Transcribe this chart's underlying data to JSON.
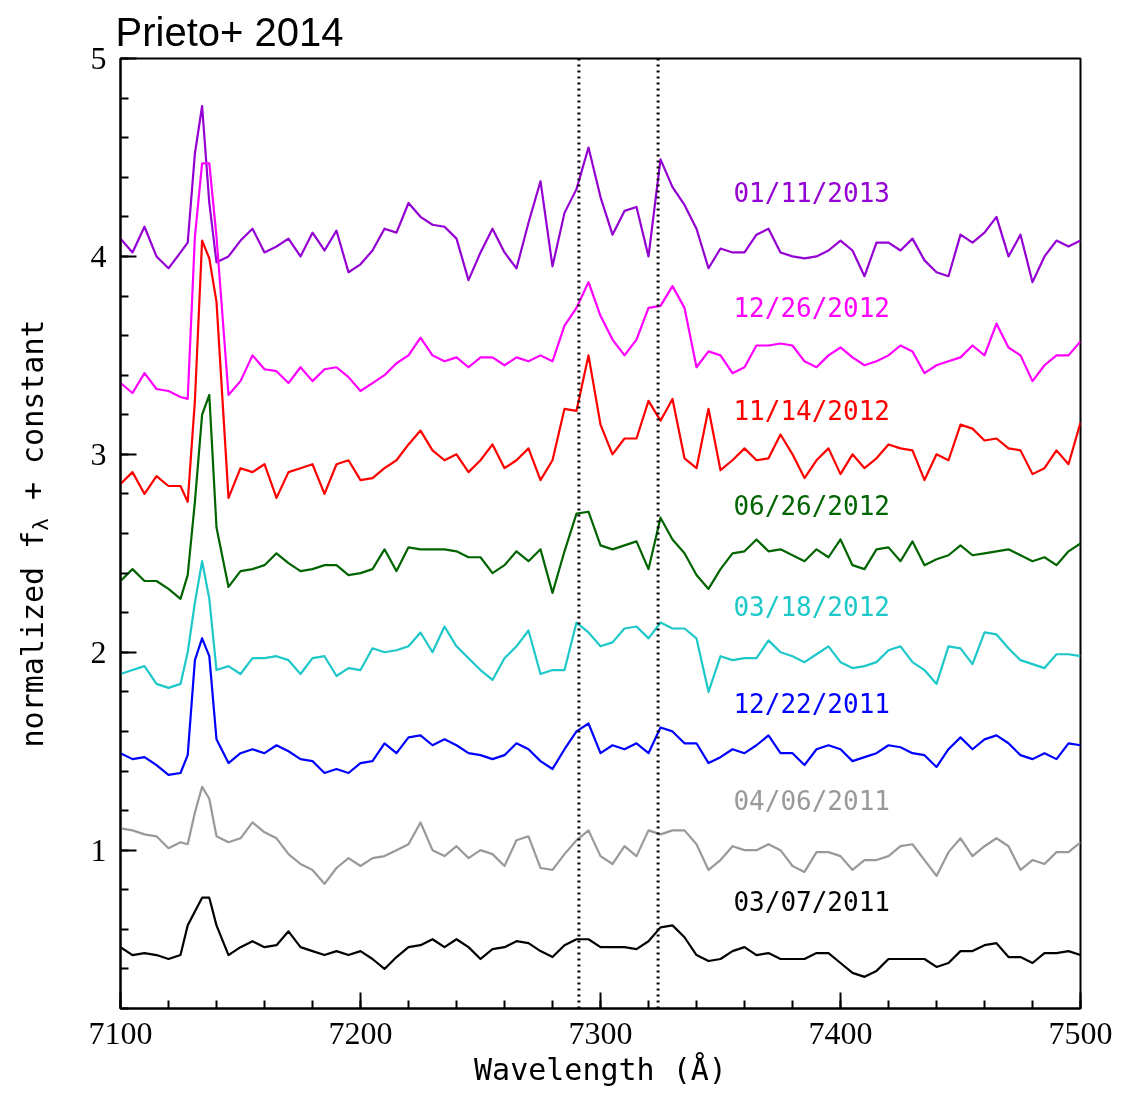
{
  "chart_data": {
    "type": "line",
    "title": "Prieto+ 2014",
    "xlabel": "Wavelength (Å)",
    "ylabel": "normalized f$_{λ}$ + constant",
    "x": [
      7100,
      7105,
      7110,
      7115,
      7120,
      7125,
      7128,
      7131,
      7134,
      7137,
      7140,
      7145,
      7150,
      7155,
      7160,
      7165,
      7170,
      7175,
      7180,
      7185,
      7190,
      7195,
      7200,
      7205,
      7210,
      7215,
      7220,
      7225,
      7230,
      7235,
      7240,
      7245,
      7250,
      7255,
      7260,
      7265,
      7270,
      7275,
      7280,
      7285,
      7290,
      7295,
      7300,
      7305,
      7310,
      7315,
      7320,
      7325,
      7330,
      7335,
      7340,
      7345,
      7350,
      7355,
      7360,
      7365,
      7370,
      7375,
      7380,
      7385,
      7390,
      7395,
      7400,
      7405,
      7410,
      7415,
      7420,
      7425,
      7430,
      7435,
      7440,
      7445,
      7450,
      7455,
      7460,
      7465,
      7470,
      7475,
      7480,
      7485,
      7490,
      7495,
      7500
    ],
    "xlim": [
      7100,
      7500
    ],
    "ylim": [
      0.2,
      5
    ],
    "xticks": [
      7100,
      7200,
      7300,
      7400,
      7500
    ],
    "yticks": [
      1,
      2,
      3,
      4,
      5
    ],
    "grid": false,
    "ref_lines": [
      {
        "axis": "x",
        "value": 7291,
        "color": "#000000",
        "line_style": "dotted"
      },
      {
        "axis": "x",
        "value": 7324,
        "color": "#000000",
        "line_style": "dotted"
      }
    ],
    "series": [
      {
        "name": "01/11/2013",
        "color": "#9400d3",
        "values": [
          4.09,
          4.02,
          4.15,
          4.0,
          3.94,
          4.02,
          4.07,
          4.52,
          4.76,
          4.27,
          3.97,
          4.0,
          4.08,
          4.14,
          4.02,
          4.05,
          4.09,
          4.0,
          4.12,
          4.03,
          4.13,
          3.92,
          3.96,
          4.03,
          4.14,
          4.12,
          4.27,
          4.2,
          4.16,
          4.15,
          4.09,
          3.88,
          4.02,
          4.14,
          4.02,
          3.94,
          4.17,
          4.38,
          3.95,
          4.22,
          4.34,
          4.55,
          4.3,
          4.11,
          4.23,
          4.25,
          4.0,
          4.49,
          4.35,
          4.26,
          4.14,
          3.94,
          4.04,
          4.02,
          4.02,
          4.11,
          4.14,
          4.02,
          4.0,
          3.99,
          4.0,
          4.03,
          4.08,
          4.03,
          3.9,
          4.07,
          4.07,
          4.03,
          4.09,
          3.98,
          3.92,
          3.9,
          4.11,
          4.07,
          4.12,
          4.2,
          4.0,
          4.11,
          3.87,
          4.0,
          4.08,
          4.05,
          4.08
        ]
      },
      {
        "name": "12/26/2012",
        "color": "#ff00ff",
        "values": [
          3.36,
          3.31,
          3.41,
          3.33,
          3.32,
          3.29,
          3.28,
          4.1,
          4.47,
          4.47,
          4.1,
          3.3,
          3.37,
          3.5,
          3.43,
          3.42,
          3.36,
          3.44,
          3.37,
          3.43,
          3.44,
          3.39,
          3.32,
          3.36,
          3.4,
          3.46,
          3.5,
          3.59,
          3.5,
          3.47,
          3.49,
          3.44,
          3.49,
          3.49,
          3.45,
          3.49,
          3.47,
          3.5,
          3.47,
          3.65,
          3.74,
          3.87,
          3.7,
          3.58,
          3.5,
          3.58,
          3.74,
          3.75,
          3.85,
          3.74,
          3.44,
          3.52,
          3.5,
          3.41,
          3.44,
          3.55,
          3.55,
          3.56,
          3.55,
          3.47,
          3.44,
          3.5,
          3.54,
          3.49,
          3.45,
          3.47,
          3.5,
          3.55,
          3.52,
          3.41,
          3.45,
          3.47,
          3.49,
          3.55,
          3.5,
          3.66,
          3.54,
          3.5,
          3.37,
          3.45,
          3.5,
          3.5,
          3.57
        ]
      },
      {
        "name": "11/14/2012",
        "color": "#ff0000",
        "values": [
          2.85,
          2.91,
          2.8,
          2.89,
          2.84,
          2.84,
          2.76,
          3.27,
          4.08,
          3.99,
          3.77,
          2.78,
          2.93,
          2.91,
          2.95,
          2.78,
          2.91,
          2.93,
          2.95,
          2.8,
          2.95,
          2.97,
          2.87,
          2.88,
          2.93,
          2.97,
          3.05,
          3.12,
          3.02,
          2.97,
          3.0,
          2.91,
          2.97,
          3.05,
          2.93,
          2.97,
          3.03,
          2.87,
          2.97,
          3.23,
          3.22,
          3.5,
          3.15,
          3.0,
          3.08,
          3.08,
          3.27,
          3.17,
          3.28,
          2.98,
          2.93,
          3.23,
          2.92,
          2.97,
          3.03,
          2.97,
          2.98,
          3.1,
          3.0,
          2.88,
          2.97,
          3.03,
          2.9,
          3.0,
          2.93,
          2.98,
          3.05,
          3.03,
          3.02,
          2.87,
          3.0,
          2.97,
          3.15,
          3.13,
          3.07,
          3.08,
          3.03,
          3.02,
          2.9,
          2.93,
          3.02,
          2.95,
          3.16
        ]
      },
      {
        "name": "06/26/2012",
        "color": "#006400",
        "values": [
          2.36,
          2.42,
          2.36,
          2.36,
          2.32,
          2.27,
          2.39,
          2.76,
          3.2,
          3.3,
          2.63,
          2.33,
          2.41,
          2.42,
          2.44,
          2.5,
          2.45,
          2.41,
          2.42,
          2.44,
          2.44,
          2.39,
          2.4,
          2.42,
          2.52,
          2.41,
          2.53,
          2.52,
          2.52,
          2.52,
          2.51,
          2.48,
          2.48,
          2.4,
          2.44,
          2.51,
          2.46,
          2.52,
          2.3,
          2.51,
          2.7,
          2.71,
          2.54,
          2.52,
          2.54,
          2.56,
          2.42,
          2.68,
          2.57,
          2.5,
          2.39,
          2.32,
          2.42,
          2.5,
          2.51,
          2.57,
          2.51,
          2.52,
          2.49,
          2.46,
          2.52,
          2.48,
          2.57,
          2.44,
          2.42,
          2.52,
          2.53,
          2.46,
          2.56,
          2.44,
          2.47,
          2.49,
          2.54,
          2.49,
          2.5,
          2.51,
          2.52,
          2.49,
          2.46,
          2.48,
          2.44,
          2.51,
          2.55
        ]
      },
      {
        "name": "03/18/2012",
        "color": "#1ec8c8",
        "values": [
          1.89,
          1.91,
          1.93,
          1.84,
          1.82,
          1.84,
          2.0,
          2.25,
          2.46,
          2.27,
          1.91,
          1.93,
          1.89,
          1.97,
          1.97,
          1.98,
          1.96,
          1.89,
          1.97,
          1.98,
          1.88,
          1.92,
          1.91,
          2.02,
          2.0,
          2.01,
          2.03,
          2.1,
          2.0,
          2.13,
          2.03,
          1.97,
          1.91,
          1.86,
          1.97,
          2.03,
          2.11,
          1.89,
          1.91,
          1.91,
          2.15,
          2.1,
          2.03,
          2.05,
          2.12,
          2.13,
          2.07,
          2.15,
          2.12,
          2.12,
          2.07,
          1.8,
          1.98,
          1.96,
          1.97,
          1.97,
          2.06,
          2.0,
          1.98,
          1.95,
          1.99,
          2.03,
          1.95,
          1.92,
          1.93,
          1.95,
          2.01,
          2.03,
          1.95,
          1.91,
          1.84,
          2.03,
          2.02,
          1.94,
          2.1,
          2.09,
          2.02,
          1.96,
          1.94,
          1.92,
          1.99,
          1.99,
          1.98
        ]
      },
      {
        "name": "12/22/2011",
        "color": "#0000ff",
        "values": [
          1.49,
          1.46,
          1.47,
          1.43,
          1.38,
          1.39,
          1.48,
          1.96,
          2.07,
          1.98,
          1.56,
          1.44,
          1.49,
          1.51,
          1.49,
          1.53,
          1.5,
          1.46,
          1.45,
          1.39,
          1.41,
          1.39,
          1.44,
          1.45,
          1.54,
          1.49,
          1.57,
          1.58,
          1.53,
          1.56,
          1.53,
          1.49,
          1.48,
          1.46,
          1.48,
          1.54,
          1.51,
          1.45,
          1.41,
          1.51,
          1.6,
          1.64,
          1.49,
          1.53,
          1.51,
          1.54,
          1.49,
          1.62,
          1.6,
          1.54,
          1.54,
          1.44,
          1.47,
          1.51,
          1.49,
          1.53,
          1.58,
          1.49,
          1.49,
          1.43,
          1.51,
          1.53,
          1.51,
          1.45,
          1.47,
          1.49,
          1.53,
          1.52,
          1.49,
          1.48,
          1.42,
          1.51,
          1.57,
          1.51,
          1.56,
          1.58,
          1.54,
          1.48,
          1.46,
          1.49,
          1.46,
          1.54,
          1.53
        ]
      },
      {
        "name": "04/06/2011",
        "color": "#999999",
        "values": [
          1.11,
          1.1,
          1.08,
          1.07,
          1.01,
          1.04,
          1.03,
          1.19,
          1.32,
          1.26,
          1.07,
          1.04,
          1.06,
          1.14,
          1.09,
          1.06,
          0.98,
          0.93,
          0.9,
          0.83,
          0.91,
          0.96,
          0.92,
          0.96,
          0.97,
          1.0,
          1.03,
          1.14,
          1.0,
          0.97,
          1.02,
          0.96,
          1.0,
          0.98,
          0.92,
          1.05,
          1.07,
          0.91,
          0.9,
          0.98,
          1.05,
          1.1,
          0.97,
          0.93,
          1.02,
          0.97,
          1.1,
          1.08,
          1.1,
          1.1,
          1.03,
          0.9,
          0.95,
          1.02,
          1.0,
          1.0,
          1.03,
          1.0,
          0.92,
          0.89,
          0.99,
          0.99,
          0.97,
          0.9,
          0.95,
          0.95,
          0.97,
          1.02,
          1.03,
          0.95,
          0.87,
          0.99,
          1.06,
          0.97,
          1.02,
          1.06,
          1.02,
          0.9,
          0.95,
          0.93,
          0.99,
          0.99,
          1.04
        ]
      },
      {
        "name": "03/07/2011",
        "color": "#000000",
        "values": [
          0.51,
          0.47,
          0.48,
          0.47,
          0.45,
          0.47,
          0.62,
          0.69,
          0.76,
          0.76,
          0.62,
          0.47,
          0.51,
          0.54,
          0.51,
          0.52,
          0.59,
          0.51,
          0.49,
          0.47,
          0.49,
          0.47,
          0.49,
          0.45,
          0.4,
          0.46,
          0.51,
          0.52,
          0.55,
          0.51,
          0.55,
          0.51,
          0.45,
          0.5,
          0.51,
          0.54,
          0.53,
          0.49,
          0.46,
          0.52,
          0.55,
          0.55,
          0.51,
          0.51,
          0.51,
          0.5,
          0.54,
          0.61,
          0.62,
          0.56,
          0.47,
          0.44,
          0.45,
          0.49,
          0.51,
          0.47,
          0.48,
          0.45,
          0.45,
          0.45,
          0.48,
          0.48,
          0.43,
          0.38,
          0.36,
          0.39,
          0.45,
          0.45,
          0.45,
          0.45,
          0.41,
          0.43,
          0.49,
          0.49,
          0.52,
          0.53,
          0.46,
          0.46,
          0.43,
          0.48,
          0.48,
          0.49,
          0.47
        ]
      }
    ]
  }
}
